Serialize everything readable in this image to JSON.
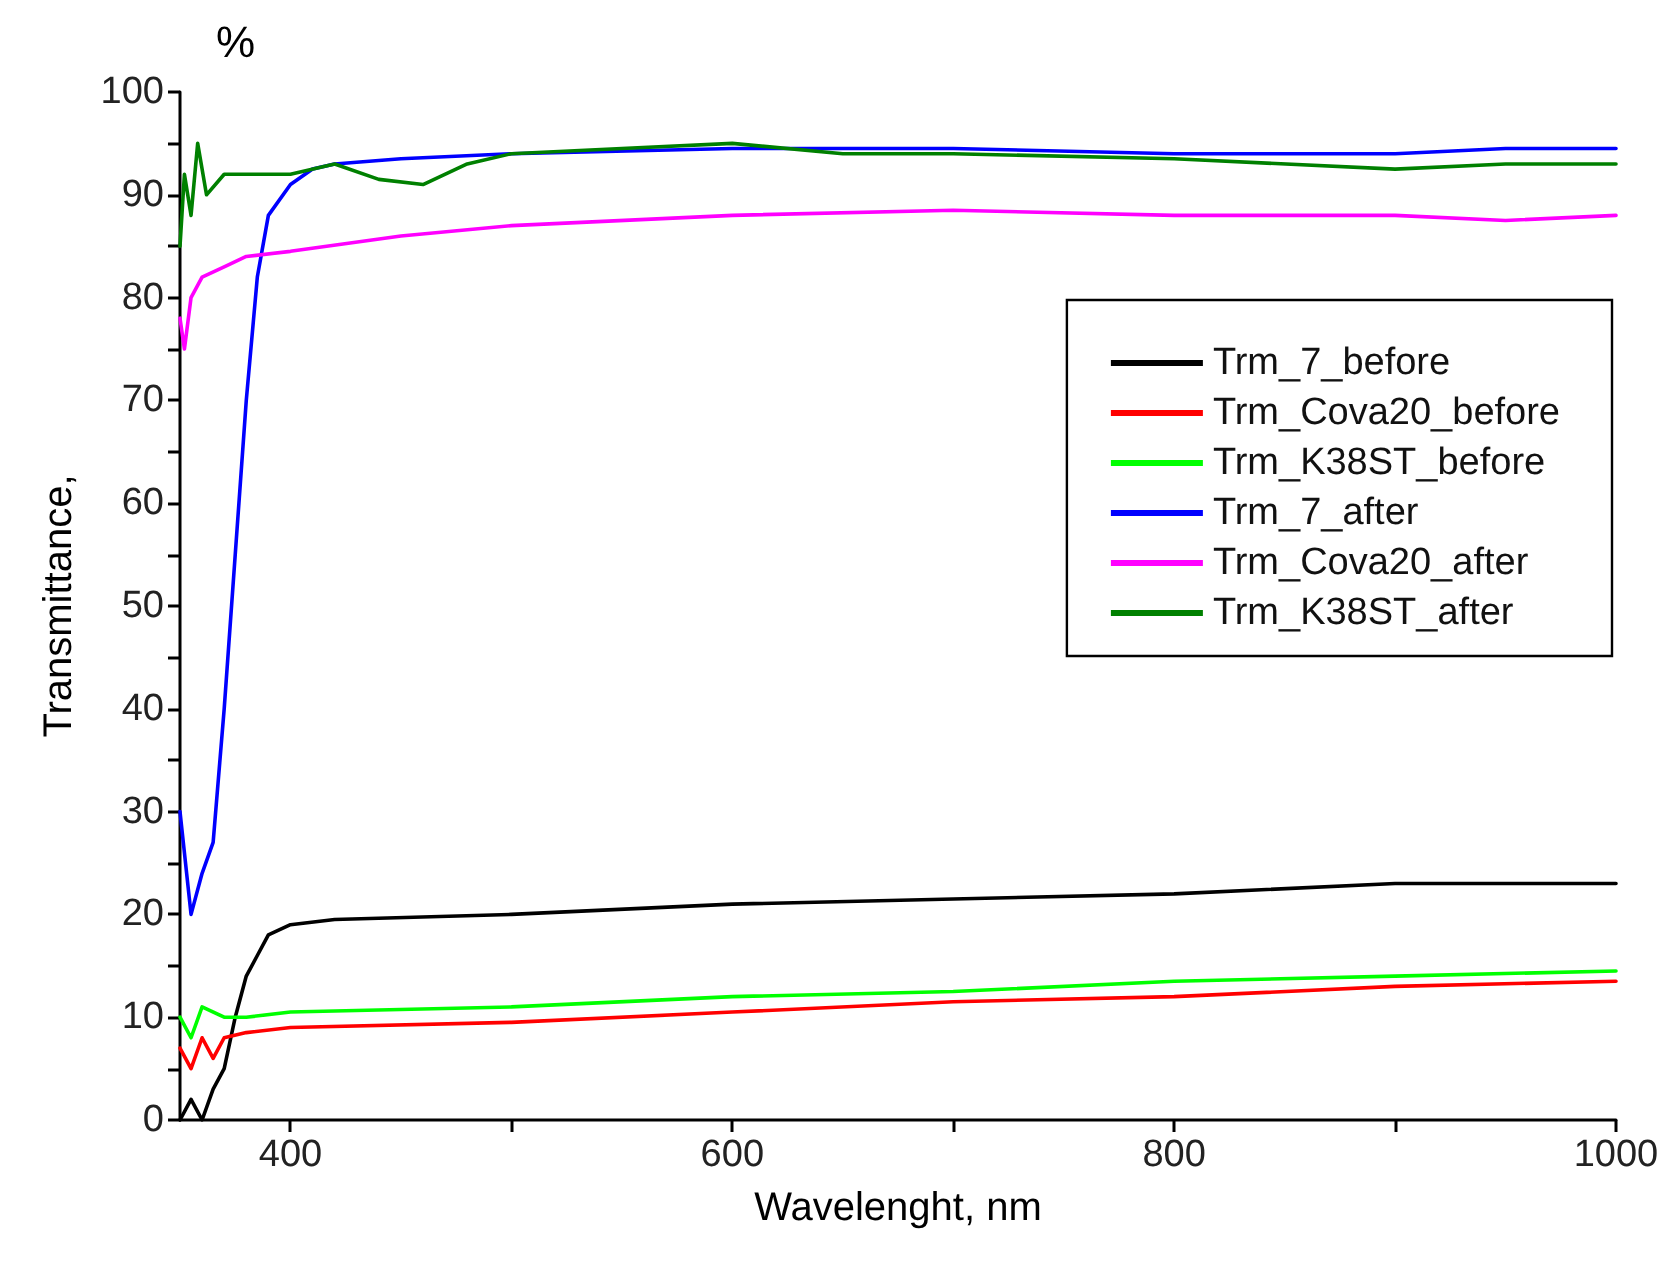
{
  "chart_data": {
    "type": "line",
    "xlabel": "Wavelenght, nm",
    "ylabel": "Transmittance,",
    "annotations": [
      "%"
    ],
    "xlim": [
      350,
      1000
    ],
    "xticks": [
      400,
      {
        "value": 500,
        "label": null
      },
      600,
      {
        "value": 700,
        "label": null
      },
      800,
      {
        "value": 900,
        "label": null
      },
      1000
    ],
    "ylim": [
      0,
      100
    ],
    "yticks": [
      0,
      {
        "value": 5,
        "label": null
      },
      10,
      {
        "value": 15,
        "label": null
      },
      20,
      {
        "value": 25,
        "label": null
      },
      30,
      {
        "value": 35,
        "label": null
      },
      40,
      {
        "value": 45,
        "label": null
      },
      50,
      {
        "value": 55,
        "label": null
      },
      60,
      {
        "value": 65,
        "label": null
      },
      70,
      {
        "value": 75,
        "label": null
      },
      80,
      {
        "value": 85,
        "label": null
      },
      90,
      {
        "value": 95,
        "label": null
      },
      100
    ],
    "grid": false,
    "legend": "right",
    "line_style": "solid",
    "series": [
      {
        "name": "Trm_7_before",
        "color": "#000000",
        "x": [
          350,
          355,
          360,
          365,
          370,
          375,
          380,
          385,
          390,
          400,
          420,
          500,
          600,
          700,
          800,
          900,
          1000
        ],
        "values": [
          0,
          2,
          0,
          3,
          5,
          10,
          14,
          16,
          18,
          19,
          19.5,
          20,
          21,
          21.5,
          22,
          23,
          23
        ]
      },
      {
        "name": "Trm_Cova20_before",
        "color": "#ff0000",
        "x": [
          350,
          355,
          360,
          365,
          370,
          380,
          400,
          500,
          600,
          700,
          800,
          900,
          1000
        ],
        "values": [
          7,
          5,
          8,
          6,
          8,
          8.5,
          9,
          9.5,
          10.5,
          11.5,
          12,
          13,
          13.5
        ]
      },
      {
        "name": "Trm_K38ST_before",
        "color": "#00ff00",
        "x": [
          350,
          355,
          360,
          370,
          380,
          400,
          500,
          600,
          700,
          800,
          900,
          1000
        ],
        "values": [
          10,
          8,
          11,
          10,
          10,
          10.5,
          11,
          12,
          12.5,
          13.5,
          14,
          14.5
        ]
      },
      {
        "name": "Trm_7_after",
        "color": "#0000ff",
        "x": [
          350,
          355,
          360,
          365,
          370,
          375,
          380,
          385,
          390,
          400,
          410,
          420,
          450,
          500,
          600,
          700,
          800,
          900,
          950,
          1000
        ],
        "values": [
          30,
          20,
          24,
          27,
          40,
          55,
          70,
          82,
          88,
          91,
          92.5,
          93,
          93.5,
          94,
          94.5,
          94.5,
          94,
          94,
          94.5,
          94.5
        ]
      },
      {
        "name": "Trm_Cova20_after",
        "color": "#ff00ff",
        "x": [
          350,
          352,
          355,
          360,
          370,
          380,
          400,
          450,
          500,
          600,
          700,
          800,
          900,
          950,
          1000
        ],
        "values": [
          78,
          75,
          80,
          82,
          83,
          84,
          84.5,
          86,
          87,
          88,
          88.5,
          88,
          88,
          87.5,
          88
        ]
      },
      {
        "name": "Trm_K38ST_after",
        "color": "#008000",
        "x": [
          350,
          352,
          355,
          358,
          362,
          370,
          380,
          400,
          420,
          440,
          460,
          480,
          500,
          550,
          600,
          650,
          700,
          800,
          900,
          950,
          1000
        ],
        "values": [
          85,
          92,
          88,
          95,
          90,
          92,
          92,
          92,
          93,
          91.5,
          91,
          93,
          94,
          94.5,
          95,
          94,
          94,
          93.5,
          92.5,
          93,
          93
        ]
      }
    ]
  }
}
